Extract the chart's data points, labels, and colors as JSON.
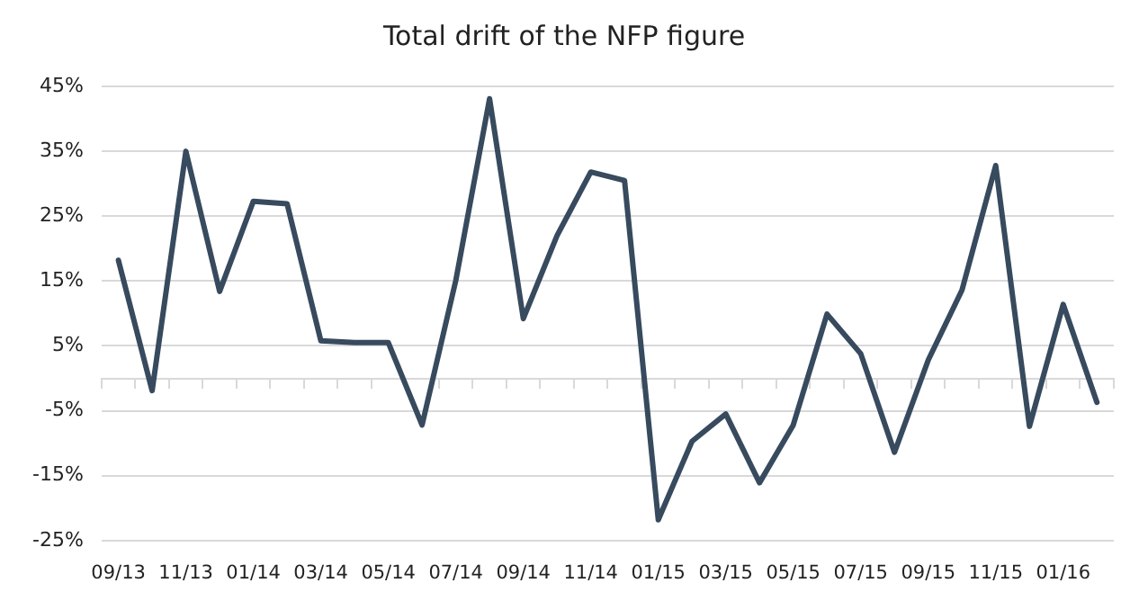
{
  "chart_data": {
    "type": "line",
    "title": "Total drift of the NFP figure",
    "categories": [
      "09/13",
      null,
      "11/13",
      null,
      "01/14",
      null,
      "03/14",
      null,
      "05/14",
      null,
      "07/14",
      null,
      "09/14",
      null,
      "11/14",
      null,
      "01/15",
      null,
      "03/15",
      null,
      "05/15",
      null,
      "07/15",
      null,
      "09/15",
      null,
      "11/15",
      null,
      "01/16",
      null
    ],
    "series": [
      {
        "color": "#374a5e",
        "values": [
          18.2,
          -1.9,
          35.0,
          13.4,
          27.3,
          26.9,
          5.8,
          5.5,
          5.5,
          -7.2,
          15.1,
          43.1,
          9.2,
          22.0,
          31.8,
          30.5,
          -21.8,
          -9.7,
          -5.5,
          -16.1,
          -7.2,
          9.9,
          3.8,
          -11.4,
          2.8,
          13.6,
          32.8,
          -7.4,
          11.4,
          -3.7
        ]
      }
    ],
    "ylim": [
      -25,
      45
    ],
    "yticks": [
      {
        "value": -25,
        "label": "-25%"
      },
      {
        "value": -15,
        "label": "-15%"
      },
      {
        "value": -5,
        "label": "-5%"
      },
      {
        "value": 5,
        "label": "5%"
      },
      {
        "value": 15,
        "label": "15%"
      },
      {
        "value": 25,
        "label": "25%"
      },
      {
        "value": 35,
        "label": "35%"
      },
      {
        "value": 45,
        "label": "45%"
      }
    ],
    "grid": "y",
    "legend": false,
    "marker": "none",
    "line_style": "solid"
  }
}
